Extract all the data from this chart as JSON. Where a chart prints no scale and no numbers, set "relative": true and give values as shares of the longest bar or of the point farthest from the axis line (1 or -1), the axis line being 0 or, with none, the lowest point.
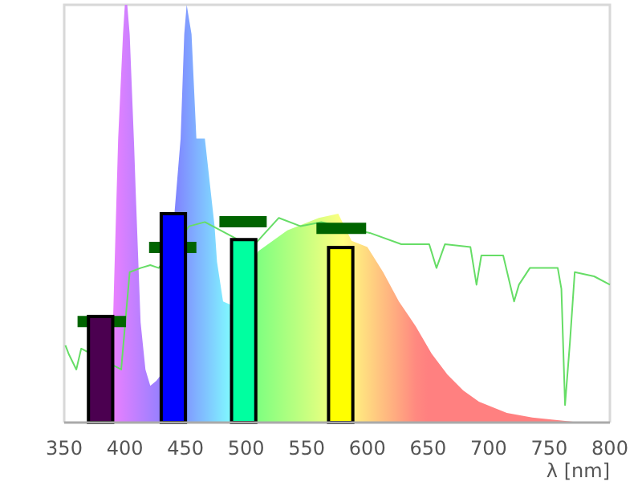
{
  "chart_data": {
    "type": "area",
    "relative": true,
    "xlabel": "λ [nm]",
    "xlim": [
      350,
      800
    ],
    "xticks": [
      350,
      400,
      450,
      500,
      550,
      600,
      650,
      700,
      750,
      800
    ],
    "grid": false,
    "series": [
      {
        "x": [
          388,
          391,
          394.5,
          398.5,
          400,
          402,
          404,
          407.7,
          409,
          413,
          417,
          421,
          426,
          430,
          437,
          442,
          446,
          449,
          451,
          455,
          459,
          466,
          474,
          476,
          481,
          489,
          496,
          510,
          534,
          560,
          576,
          587,
          600,
          613,
          626,
          640,
          653,
          666,
          679,
          692,
          715,
          736,
          776
        ],
        "values": [
          0,
          0.32,
          0.68,
          0.93,
          1,
          1,
          0.93,
          0.66,
          0.55,
          0.24,
          0.127,
          0.088,
          0.1,
          0.115,
          null,
          null,
          0.68,
          0.93,
          1,
          0.93,
          0.68,
          0.68,
          0.47,
          0.385,
          0.29,
          0.28,
          null,
          0.41,
          0.46,
          0.49,
          0.5,
          0.435,
          0.42,
          0.36,
          0.29,
          0.23,
          0.165,
          0.115,
          0.077,
          0.05,
          0.023,
          0.012,
          0
        ]
      },
      {
        "type": "line",
        "color": "#66dd66",
        "x": [
          351,
          353.6,
          360,
          364,
          397,
          404,
          413,
          421,
          428,
          453,
          466,
          505,
          527,
          545,
          562,
          602,
          628,
          651,
          657,
          664,
          685,
          690,
          694,
          712,
          721,
          725,
          734,
          757,
          760,
          763,
          767,
          771,
          787,
          800
        ],
        "values": [
          0.185,
          0.165,
          0.127,
          0.177,
          0.127,
          0.36,
          0.37,
          0.377,
          0.37,
          0.47,
          0.48,
          0.42,
          0.49,
          0.47,
          0.48,
          0.454,
          0.427,
          0.427,
          0.37,
          0.427,
          0.42,
          0.33,
          0.4,
          0.4,
          0.29,
          0.33,
          0.37,
          0.37,
          0.32,
          0.042,
          0.19,
          0.36,
          0.35,
          0.33
        ]
      },
      {
        "type": "line",
        "color": "#006400",
        "x": [
          361,
          401
        ],
        "values": [
          0.242,
          0.242
        ]
      },
      {
        "type": "line",
        "color": "#006400",
        "x": [
          420,
          459
        ],
        "values": [
          0.419,
          0.419
        ]
      },
      {
        "type": "line",
        "color": "#006400",
        "x": [
          478,
          517
        ],
        "values": [
          0.481,
          0.481
        ]
      },
      {
        "type": "line",
        "color": "#006400",
        "x": [
          558,
          599
        ],
        "values": [
          0.465,
          0.465
        ]
      },
      {
        "type": "bar",
        "x": [
          380,
          440,
          498,
          578
        ],
        "values": [
          0.254,
          0.5,
          0.438,
          0.419
        ],
        "colors": [
          "#4b0050",
          "#0000ff",
          "#00ffa0",
          "#ffff00"
        ]
      }
    ]
  }
}
